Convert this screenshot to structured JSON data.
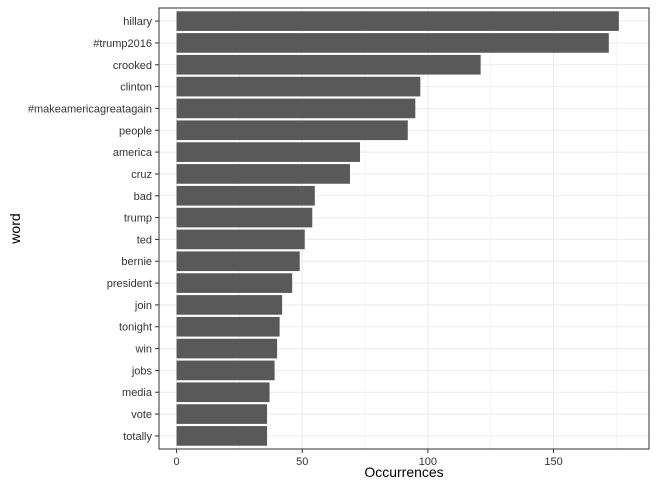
{
  "chart_data": {
    "type": "bar",
    "orientation": "horizontal",
    "xlabel": "Occurrences",
    "ylabel": "word",
    "xlim": [
      -7,
      188
    ],
    "xticks": [
      0,
      50,
      100,
      150
    ],
    "grid": true,
    "categories": [
      "hillary",
      "#trump2016",
      "crooked",
      "clinton",
      "#makeamericagreatagain",
      "people",
      "america",
      "cruz",
      "bad",
      "trump",
      "ted",
      "bernie",
      "president",
      "join",
      "tonight",
      "win",
      "jobs",
      "media",
      "vote",
      "totally"
    ],
    "values": [
      176,
      172,
      121,
      97,
      95,
      92,
      73,
      69,
      55,
      54,
      51,
      49,
      46,
      42,
      41,
      40,
      39,
      37,
      36,
      36
    ],
    "colors": {
      "bar": "#595959",
      "panel_border": "#333333",
      "grid_major": "#ebebeb",
      "grid_minor": "#f5f5f5"
    }
  }
}
